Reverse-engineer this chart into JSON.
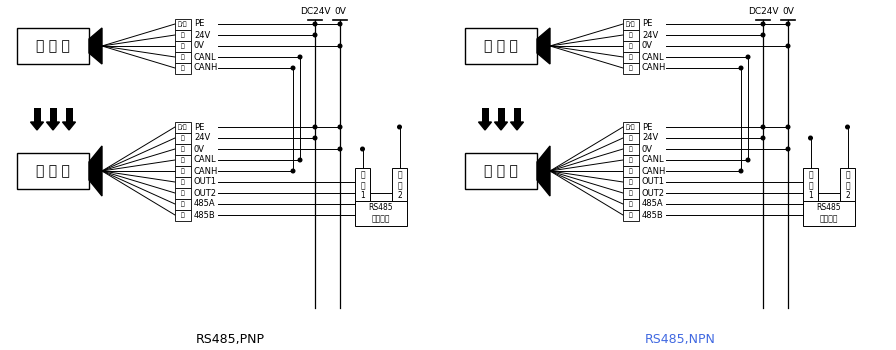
{
  "bg_color": "#ffffff",
  "line_color": "#000000",
  "fig_width": 8.96,
  "fig_height": 3.5,
  "left_title": "RS485,PNP",
  "right_title": "RS485,NPN",
  "transmitter_label": "发 射 器",
  "receiver_label": "接 收 器",
  "tx_pins": [
    "黄/绳",
    "红",
    "绳",
    "蓝",
    "黄"
  ],
  "tx_labels": [
    "PE",
    "24V",
    "0V",
    "CANL",
    "CANH"
  ],
  "rx_pins": [
    "黄/绳",
    "红",
    "绳",
    "蓝",
    "黄",
    "黑",
    "棕",
    "白",
    "橙"
  ],
  "rx_labels": [
    "PE",
    "24V",
    "0V",
    "CANL",
    "CANH",
    "OUT1",
    "OUT2",
    "485A",
    "485B"
  ],
  "power_label1": "DC24V",
  "power_label2": "0V",
  "load1_label": "负\n载\n1",
  "load2_label": "负\n载\n2",
  "rs485_label": "RS485\n设备终端",
  "npn_color": "#4169e1"
}
